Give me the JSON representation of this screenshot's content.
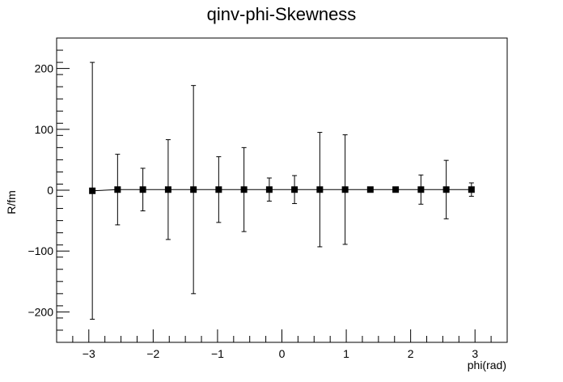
{
  "chart_data": {
    "type": "scatter",
    "title": "qinv-phi-Skewness",
    "xlabel": "phi(rad)",
    "ylabel": "R/fm",
    "xlim": [
      -3.5,
      3.5
    ],
    "ylim": [
      -250,
      250
    ],
    "grid": false,
    "legend": "none",
    "x_ticks": [
      -3,
      -2,
      -1,
      0,
      1,
      2,
      3
    ],
    "x_tick_labels": [
      "−3",
      "−2",
      "−1",
      "0",
      "1",
      "2",
      "3"
    ],
    "y_ticks": [
      -200,
      -100,
      0,
      100,
      200
    ],
    "y_tick_labels": [
      "−200",
      "−100",
      "0",
      "100",
      "200"
    ],
    "series": [
      {
        "x": [
          -2.945,
          -2.553,
          -2.16,
          -1.767,
          -1.374,
          -0.982,
          -0.589,
          -0.196,
          0.196,
          0.589,
          0.982,
          1.374,
          1.767,
          2.16,
          2.553,
          2.945
        ],
        "y": [
          -1,
          1,
          1,
          1,
          1,
          1,
          1,
          1,
          1,
          1,
          1,
          1,
          1,
          1,
          1,
          1
        ],
        "error": [
          211,
          58,
          35,
          82,
          171,
          54,
          69,
          19,
          23,
          94,
          90,
          0,
          0,
          24,
          48,
          11
        ]
      }
    ],
    "colors": {
      "marker": "#000000",
      "line": "#000000",
      "frame": "#000000"
    }
  }
}
